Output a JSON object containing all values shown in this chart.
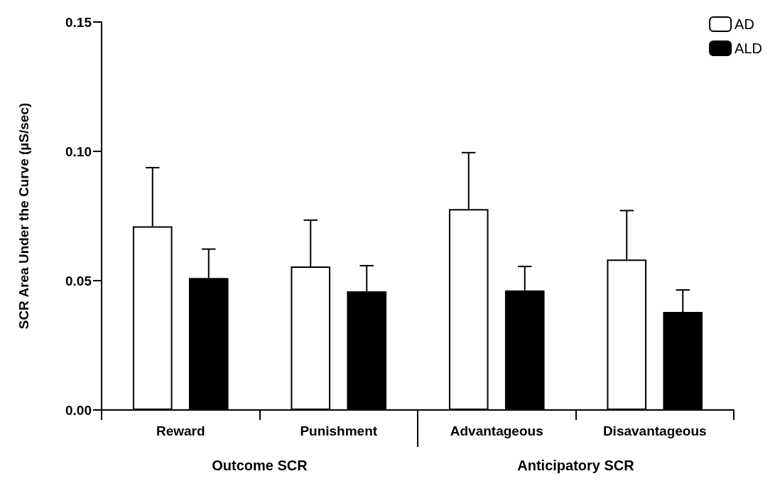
{
  "chart_data": {
    "type": "bar",
    "ylabel": "SCR Area Under the Curve (µS/sec)",
    "categories": [
      "Reward",
      "Punishment",
      "Advantageous",
      "Disavantageous"
    ],
    "series": [
      {
        "name": "AD",
        "color": "#ffffff",
        "values": [
          0.071,
          0.0555,
          0.0777,
          0.0582
        ],
        "errors": [
          [
            0.071,
            0.0937
          ],
          [
            0.0555,
            0.0734
          ],
          [
            0.0777,
            0.0995
          ],
          [
            0.0582,
            0.0771
          ]
        ]
      },
      {
        "name": "ALD",
        "color": "#000000",
        "values": [
          0.051,
          0.0459,
          0.0462,
          0.0379
        ],
        "errors": [
          [
            0.051,
            0.0622
          ],
          [
            0.0459,
            0.0558
          ],
          [
            0.0462,
            0.0555
          ],
          [
            0.0379,
            0.0464
          ]
        ]
      }
    ],
    "ylim": [
      0,
      0.15
    ],
    "yticks": [
      {
        "value": 0,
        "label": "0.00"
      },
      {
        "value": 0.05,
        "label": "0.05"
      },
      {
        "value": 0.1,
        "label": "0.10"
      },
      {
        "value": 0.15,
        "label": "0.15"
      }
    ],
    "annotations": [
      "Outcome SCR",
      "Anticipatory SCR"
    ],
    "grid": false,
    "legend": "top right"
  }
}
